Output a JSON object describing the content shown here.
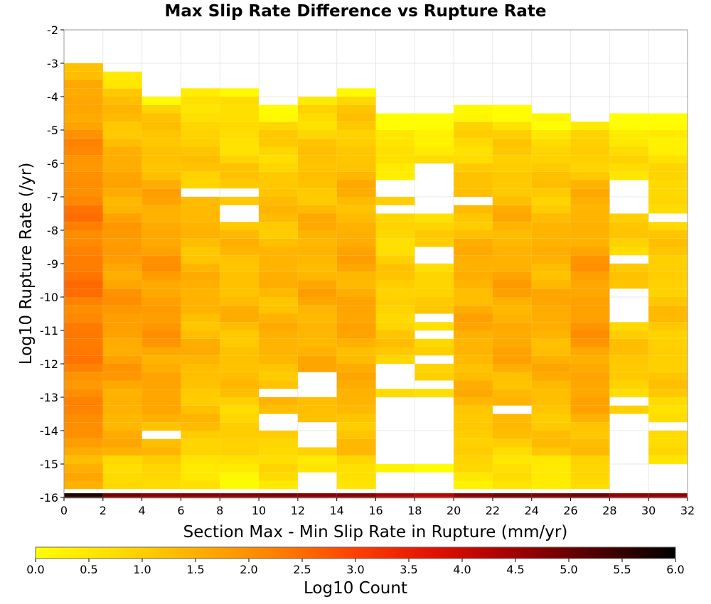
{
  "chart_data": {
    "type": "heatmap",
    "title": "Max Slip Rate Difference vs Rupture Rate",
    "xlabel": "Section Max - Min Slip Rate in Rupture (mm/yr)",
    "ylabel": "Log10 Rupture Rate (/yr)",
    "xlim": [
      0,
      32
    ],
    "ylim": [
      -16,
      -2
    ],
    "x_bin_width": 2,
    "y_bin_height": 0.25,
    "x_ticks": [
      "0",
      "2",
      "4",
      "6",
      "8",
      "10",
      "12",
      "14",
      "16",
      "18",
      "20",
      "22",
      "24",
      "26",
      "28",
      "30",
      "32"
    ],
    "y_ticks": [
      "-2",
      "-3",
      "-4",
      "-5",
      "-6",
      "-7",
      "-8",
      "-9",
      "-10",
      "-11",
      "-12",
      "-13",
      "-14",
      "-15",
      "-16"
    ],
    "colorbar": {
      "label": "Log10 Count",
      "range": [
        0,
        6
      ],
      "ticks": [
        "0.0",
        "0.5",
        "1.0",
        "1.5",
        "2.0",
        "2.5",
        "3.0",
        "3.5",
        "4.0",
        "4.5",
        "5.0",
        "5.5",
        "6.0"
      ],
      "colormap": "hot-reversed",
      "stops": [
        "#ffff00",
        "#ffdd00",
        "#ffb000",
        "#ff8000",
        "#ff4000",
        "#e01000",
        "#a00000",
        "#500000",
        "#000000"
      ]
    },
    "columns": [
      {
        "x0": 0,
        "top": -3.0,
        "levels": [
          1.3,
          2.3
        ],
        "gaps": []
      },
      {
        "x0": 2,
        "top": -3.25,
        "levels": [
          0.8,
          1.8
        ],
        "gaps": []
      },
      {
        "x0": 4,
        "top": -3.85,
        "levels": [
          0.6,
          1.8
        ],
        "gaps": [
          [
            -14.25,
            -14.0
          ]
        ]
      },
      {
        "x0": 6,
        "top": -3.6,
        "levels": [
          0.5,
          1.4
        ],
        "gaps": [
          [
            -7.0,
            -6.75
          ]
        ]
      },
      {
        "x0": 8,
        "top": -3.6,
        "levels": [
          0.3,
          1.3
        ],
        "gaps": [
          [
            -7.0,
            -6.75
          ],
          [
            -7.5,
            -7.25
          ],
          [
            -7.85,
            -7.6
          ]
        ]
      },
      {
        "x0": 10,
        "top": -4.2,
        "levels": [
          0.5,
          1.4
        ],
        "gaps": [
          [
            -13.0,
            -12.75
          ],
          [
            -14.0,
            -13.5
          ]
        ]
      },
      {
        "x0": 12,
        "top": -3.85,
        "levels": [
          0.6,
          1.5
        ],
        "gaps": [
          [
            -13.0,
            -12.2
          ],
          [
            -14.4,
            -13.75
          ],
          [
            -15.75,
            -15.25
          ]
        ]
      },
      {
        "x0": 14,
        "top": -3.6,
        "levels": [
          0.6,
          1.6
        ],
        "gaps": [
          [
            -14.6,
            -14.4
          ]
        ]
      },
      {
        "x0": 16,
        "top": -4.4,
        "levels": [
          0.2,
          1.0
        ],
        "gaps": [
          [
            -6.9,
            -6.6
          ],
          [
            -7.5,
            -7.25
          ],
          [
            -12.75,
            -12.0
          ],
          [
            -15.0,
            -13.1
          ],
          [
            -15.9,
            -15.2
          ]
        ]
      },
      {
        "x0": 18,
        "top": -4.4,
        "levels": [
          0.2,
          0.9
        ],
        "gaps": [
          [
            -7.6,
            -6.1
          ],
          [
            -8.1,
            -7.9
          ],
          [
            -8.9,
            -8.6
          ],
          [
            -10.8,
            -10.5
          ],
          [
            -11.3,
            -11.1
          ],
          [
            -11.9,
            -11.7
          ],
          [
            -12.7,
            -12.4
          ],
          [
            -15.0,
            -13.1
          ],
          [
            -15.9,
            -15.25
          ]
        ]
      },
      {
        "x0": 20,
        "top": -4.2,
        "levels": [
          0.4,
          1.5
        ],
        "gaps": [
          [
            -7.25,
            -7.0
          ],
          [
            -14.1,
            -13.9
          ]
        ]
      },
      {
        "x0": 22,
        "top": -4.2,
        "levels": [
          0.4,
          1.6
        ],
        "gaps": [
          [
            -13.5,
            -13.25
          ]
        ]
      },
      {
        "x0": 24,
        "top": -4.4,
        "levels": [
          0.4,
          1.5
        ],
        "gaps": []
      },
      {
        "x0": 26,
        "top": -4.6,
        "levels": [
          0.5,
          1.8
        ],
        "gaps": []
      },
      {
        "x0": 28,
        "top": -4.4,
        "levels": [
          0.2,
          1.1
        ],
        "gaps": [
          [
            -7.6,
            -6.6
          ],
          [
            -8.9,
            -8.7
          ],
          [
            -10.7,
            -9.8
          ],
          [
            -12.0,
            -11.9
          ],
          [
            -13.25,
            -13.0
          ],
          [
            -15.9,
            -13.6
          ]
        ]
      },
      {
        "x0": 30,
        "top": -4.4,
        "levels": [
          0.2,
          1.1
        ],
        "gaps": [
          [
            -7.85,
            -7.6
          ],
          [
            -14.0,
            -13.75
          ],
          [
            -15.9,
            -14.9
          ]
        ]
      }
    ],
    "bottom_row": {
      "y": -16,
      "values": [
        5.7,
        4.9,
        4.7,
        4.7,
        4.7,
        4.8,
        4.7,
        4.7,
        4.4,
        4.2,
        4.7,
        4.9,
        4.8,
        4.9,
        4.6,
        4.6
      ]
    }
  }
}
